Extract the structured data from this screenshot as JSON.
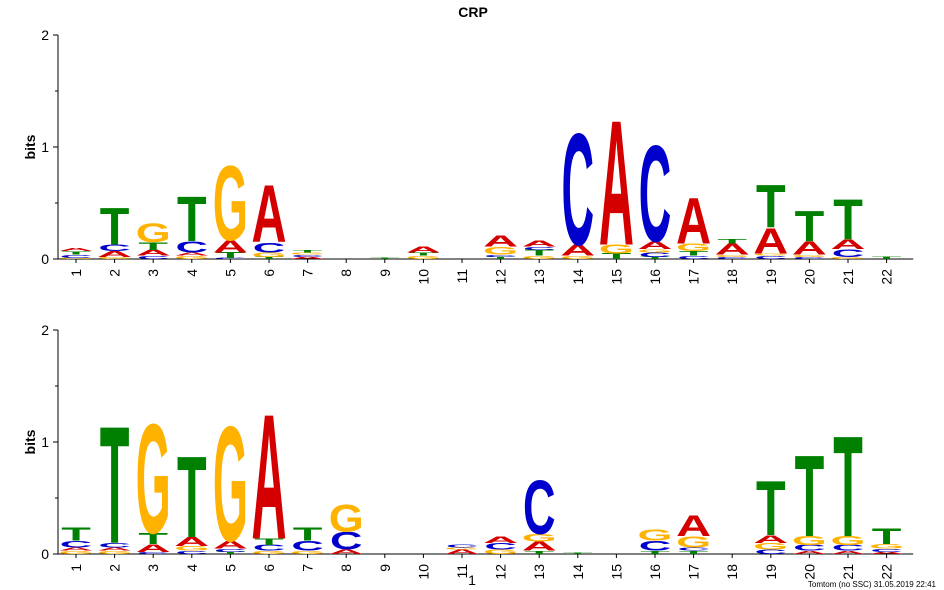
{
  "chart_data": {
    "type": "sequence-logo",
    "title": "CRP",
    "colors": {
      "A": "#d40000",
      "C": "#0000cc",
      "G": "#ffb300",
      "T": "#008000"
    },
    "panels": [
      {
        "ylabel": "bits",
        "ylim": [
          0,
          2
        ],
        "yticks": [
          "0",
          "1",
          "2"
        ],
        "positions": [
          "1",
          "2",
          "3",
          "4",
          "5",
          "6",
          "7",
          "8",
          "9",
          "10",
          "11",
          "12",
          "13",
          "14",
          "15",
          "16",
          "17",
          "18",
          "19",
          "20",
          "21",
          "22"
        ],
        "stacks": [
          [
            [
              "G",
              0.01
            ],
            [
              "C",
              0.03
            ],
            [
              "T",
              0.03
            ],
            [
              "A",
              0.03
            ]
          ],
          [
            [
              "G",
              0.02
            ],
            [
              "A",
              0.05
            ],
            [
              "C",
              0.06
            ],
            [
              "T",
              0.34
            ]
          ],
          [
            [
              "C",
              0.03
            ],
            [
              "A",
              0.05
            ],
            [
              "T",
              0.07
            ],
            [
              "G",
              0.17
            ]
          ],
          [
            [
              "G",
              0.03
            ],
            [
              "A",
              0.03
            ],
            [
              "C",
              0.1
            ],
            [
              "T",
              0.41
            ]
          ],
          [
            [
              "C",
              0.01
            ],
            [
              "T",
              0.05
            ],
            [
              "A",
              0.11
            ],
            [
              "G",
              0.68
            ]
          ],
          [
            [
              "T",
              0.02
            ],
            [
              "G",
              0.04
            ],
            [
              "C",
              0.09
            ],
            [
              "A",
              0.52
            ]
          ],
          [
            [
              "A",
              0.02
            ],
            [
              "C",
              0.02
            ],
            [
              "G",
              0.02
            ],
            [
              "T",
              0.02
            ]
          ],
          [],
          [
            [
              "T",
              0.01
            ]
          ],
          [
            [
              "G",
              0.03
            ],
            [
              "T",
              0.03
            ],
            [
              "A",
              0.05
            ]
          ],
          [],
          [
            [
              "T",
              0.02
            ],
            [
              "C",
              0.02
            ],
            [
              "G",
              0.07
            ],
            [
              "A",
              0.1
            ]
          ],
          [
            [
              "G",
              0.03
            ],
            [
              "T",
              0.05
            ],
            [
              "C",
              0.03
            ],
            [
              "A",
              0.05
            ]
          ],
          [
            [
              "G",
              0.03
            ],
            [
              "A",
              0.1
            ],
            [
              "C",
              1.02
            ]
          ],
          [
            [
              "T",
              0.05
            ],
            [
              "G",
              0.08
            ],
            [
              "A",
              1.14
            ]
          ],
          [
            [
              "T",
              0.02
            ],
            [
              "C",
              0.04
            ],
            [
              "G",
              0.03
            ],
            [
              "A",
              0.07
            ],
            [
              "C",
              0.88
            ]
          ],
          [
            [
              "C",
              0.03
            ],
            [
              "T",
              0.04
            ],
            [
              "G",
              0.07
            ],
            [
              "A",
              0.42
            ]
          ],
          [
            [
              "C",
              0.02
            ],
            [
              "G",
              0.02
            ],
            [
              "A",
              0.1
            ],
            [
              "T",
              0.04
            ]
          ],
          [
            [
              "C",
              0.03
            ],
            [
              "G",
              0.02
            ],
            [
              "A",
              0.23
            ],
            [
              "T",
              0.39
            ]
          ],
          [
            [
              "C",
              0.02
            ],
            [
              "G",
              0.02
            ],
            [
              "A",
              0.12
            ],
            [
              "T",
              0.28
            ]
          ],
          [
            [
              "G",
              0.02
            ],
            [
              "C",
              0.07
            ],
            [
              "A",
              0.09
            ],
            [
              "T",
              0.37
            ]
          ],
          [
            [
              "T",
              0.02
            ]
          ]
        ]
      },
      {
        "ylabel": "bits",
        "ylim": [
          0,
          2
        ],
        "yticks": [
          "0",
          "1",
          "2"
        ],
        "positions": [
          "1",
          "2",
          "3",
          "4",
          "5",
          "6",
          "7",
          "8",
          "9",
          "10",
          "11",
          "12",
          "13",
          "14",
          "15",
          "16",
          "17",
          "18",
          "19",
          "20",
          "21",
          "22"
        ],
        "stacks": [
          [
            [
              "G",
              0.03
            ],
            [
              "A",
              0.03
            ],
            [
              "C",
              0.06
            ],
            [
              "T",
              0.12
            ]
          ],
          [
            [
              "G",
              0.03
            ],
            [
              "A",
              0.03
            ],
            [
              "C",
              0.04
            ],
            [
              "T",
              1.07
            ]
          ],
          [
            [
              "C",
              0.02
            ],
            [
              "A",
              0.07
            ],
            [
              "T",
              0.1
            ],
            [
              "G",
              1.0
            ]
          ],
          [
            [
              "C",
              0.03
            ],
            [
              "G",
              0.04
            ],
            [
              "A",
              0.08
            ],
            [
              "T",
              0.74
            ]
          ],
          [
            [
              "T",
              0.02
            ],
            [
              "C",
              0.03
            ],
            [
              "A",
              0.07
            ],
            [
              "G",
              1.05
            ]
          ],
          [
            [
              "G",
              0.03
            ],
            [
              "C",
              0.05
            ],
            [
              "T",
              0.06
            ],
            [
              "A",
              1.14
            ]
          ],
          [
            [
              "G",
              0.03
            ],
            [
              "C",
              0.09
            ],
            [
              "T",
              0.12
            ]
          ],
          [
            [
              "A",
              0.04
            ],
            [
              "C",
              0.16
            ],
            [
              "G",
              0.25
            ]
          ],
          [],
          [],
          [
            [
              "A",
              0.04
            ],
            [
              "G",
              0.02
            ],
            [
              "C",
              0.03
            ]
          ],
          [
            [
              "G",
              0.04
            ],
            [
              "C",
              0.06
            ],
            [
              "A",
              0.06
            ]
          ],
          [
            [
              "T",
              0.03
            ],
            [
              "A",
              0.08
            ],
            [
              "G",
              0.07
            ],
            [
              "C",
              0.49
            ]
          ],
          [
            [
              "T",
              0.01
            ]
          ],
          [],
          [
            [
              "T",
              0.03
            ],
            [
              "C",
              0.09
            ],
            [
              "G",
              0.1
            ]
          ],
          [
            [
              "T",
              0.03
            ],
            [
              "C",
              0.03
            ],
            [
              "G",
              0.1
            ],
            [
              "A",
              0.19
            ]
          ],
          [],
          [
            [
              "C",
              0.04
            ],
            [
              "G",
              0.06
            ],
            [
              "A",
              0.07
            ],
            [
              "T",
              0.5
            ]
          ],
          [
            [
              "A",
              0.03
            ],
            [
              "C",
              0.05
            ],
            [
              "G",
              0.08
            ],
            [
              "T",
              0.74
            ]
          ],
          [
            [
              "A",
              0.03
            ],
            [
              "C",
              0.05
            ],
            [
              "G",
              0.08
            ],
            [
              "T",
              0.92
            ]
          ],
          [
            [
              "A",
              0.02
            ],
            [
              "C",
              0.03
            ],
            [
              "G",
              0.04
            ],
            [
              "T",
              0.14
            ]
          ]
        ]
      }
    ],
    "marker": "1",
    "footer": "Tomtom (no SSC) 31.05.2019 22:41"
  }
}
